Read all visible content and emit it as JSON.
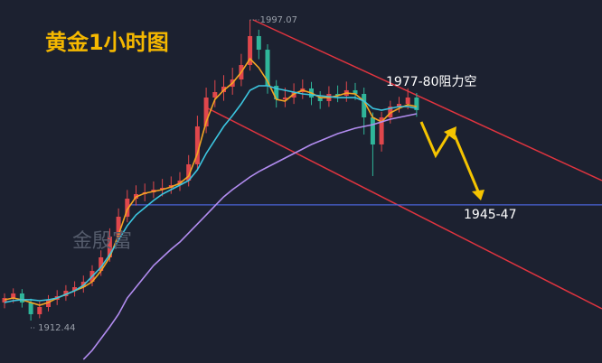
{
  "chart_data": {
    "type": "candlestick",
    "title": "黄金1小时图",
    "watermark": "金殷富",
    "annotation": "1977-80阻力空",
    "up_color": "#e0474c",
    "down_color": "#2fb59a",
    "open": [
      1917.52,
      1918.79,
      1920.07,
      1917.52,
      1914.22,
      1916.25,
      1918.29,
      1919.3,
      1920.83,
      1921.84,
      1923.37,
      1926.42,
      1930.23,
      1936.08,
      1941.67,
      1946.75,
      1948.02,
      1948.53,
      1949.29,
      1949.8,
      1950.56,
      1951.83,
      1956.41,
      1967.08,
      1975.21,
      1976.74,
      1978.26,
      1980.3,
      1984.36,
      1992.5,
      1988.68,
      1978.52,
      1974.71,
      1975.21,
      1976.74,
      1977.76,
      1975.21,
      1974.2,
      1976.23,
      1975.72,
      1977.25,
      1976.23,
      1969.62,
      1962.0,
      1969.62,
      1972.67,
      1973.43,
      1975.21
    ],
    "high": [
      1920.1,
      1921.5,
      1921.3,
      1918.6,
      1917.8,
      1919.6,
      1921.0,
      1922.4,
      1923.5,
      1925.1,
      1928.0,
      1932.2,
      1938.4,
      1944.0,
      1949.2,
      1950.5,
      1951.0,
      1951.6,
      1952.3,
      1953.0,
      1954.2,
      1959.0,
      1970.1,
      1978.0,
      1980.1,
      1981.5,
      1983.6,
      1987.5,
      1997.07,
      1994.3,
      1990.2,
      1980.1,
      1978.0,
      1979.2,
      1980.3,
      1979.6,
      1977.0,
      1978.4,
      1978.6,
      1979.7,
      1979.3,
      1978.0,
      1971.0,
      1971.2,
      1974.3,
      1975.4,
      1977.8,
      1976.5
    ],
    "low": [
      1915.9,
      1917.4,
      1916.1,
      1912.44,
      1913.1,
      1915.0,
      1916.8,
      1918.0,
      1919.2,
      1920.3,
      1922.1,
      1925.0,
      1929.0,
      1934.6,
      1940.1,
      1944.8,
      1946.0,
      1946.9,
      1947.4,
      1948.1,
      1948.9,
      1950.2,
      1955.0,
      1965.2,
      1972.5,
      1974.3,
      1976.0,
      1978.4,
      1982.8,
      1986.0,
      1976.3,
      1972.4,
      1972.5,
      1973.4,
      1974.8,
      1973.1,
      1972.0,
      1972.6,
      1973.9,
      1974.0,
      1974.5,
      1964.8,
      1953.11,
      1960.0,
      1967.9,
      1971.0,
      1971.9,
      1969.8
    ],
    "close": [
      1918.79,
      1920.07,
      1917.52,
      1914.22,
      1916.25,
      1918.29,
      1919.3,
      1920.83,
      1921.84,
      1923.37,
      1926.42,
      1930.23,
      1936.08,
      1941.67,
      1946.75,
      1948.02,
      1948.53,
      1949.29,
      1949.8,
      1950.56,
      1951.83,
      1956.41,
      1967.08,
      1975.21,
      1976.74,
      1978.26,
      1980.3,
      1984.36,
      1992.5,
      1988.68,
      1978.52,
      1974.71,
      1975.21,
      1976.74,
      1977.76,
      1975.21,
      1974.2,
      1976.23,
      1975.72,
      1977.25,
      1976.23,
      1969.62,
      1962.0,
      1969.62,
      1972.67,
      1973.43,
      1975.21,
      1971.66
    ],
    "lines": [
      {
        "color": "#f5a623",
        "values": [
          1918.29,
          1918.79,
          1918.29,
          1917.52,
          1916.76,
          1917.52,
          1918.79,
          1919.81,
          1920.83,
          1921.84,
          1923.37,
          1926.42,
          1930.23,
          1936.58,
          1943.7,
          1947.26,
          1948.27,
          1948.78,
          1949.29,
          1950.05,
          1951.07,
          1953.1,
          1959.46,
          1968.35,
          1974.7,
          1977.25,
          1979.28,
          1982.33,
          1986.14,
          1983.6,
          1979.79,
          1974.7,
          1974.2,
          1976.23,
          1977.25,
          1976.48,
          1975.21,
          1975.21,
          1975.72,
          1976.48,
          1976.23,
          1974.2,
          1969.62,
          1968.35,
          1970.89,
          1972.16,
          1973.18,
          1972.67
        ]
      },
      {
        "color": "#3cc6e0",
        "values": [
          1917.52,
          1918.03,
          1918.29,
          1918.29,
          1918.03,
          1918.29,
          1918.79,
          1919.81,
          1920.83,
          1922.35,
          1924.89,
          1927.43,
          1930.99,
          1935.06,
          1939.12,
          1942.17,
          1944.21,
          1946.24,
          1948.02,
          1949.29,
          1950.56,
          1951.83,
          1954.88,
          1959.46,
          1963.27,
          1967.08,
          1970.13,
          1973.43,
          1977.25,
          1978.52,
          1978.52,
          1977.75,
          1977.25,
          1976.74,
          1976.23,
          1975.98,
          1975.72,
          1975.47,
          1975.21,
          1975.21,
          1975.21,
          1974.2,
          1972.16,
          1971.65,
          1972.16,
          1972.67,
          1972.67,
          1972.16
        ]
      },
      {
        "color": "#b28cf0",
        "values": [
          null,
          null,
          null,
          null,
          null,
          null,
          null,
          null,
          null,
          1901.51,
          1904.05,
          1907.36,
          1910.66,
          1914.22,
          1918.79,
          1921.84,
          1924.89,
          1927.94,
          1930.23,
          1932.52,
          1934.55,
          1937.09,
          1939.63,
          1942.17,
          1944.72,
          1947.26,
          1949.29,
          1951.07,
          1952.85,
          1954.37,
          1955.64,
          1956.91,
          1958.19,
          1959.46,
          1960.73,
          1962.0,
          1963.01,
          1964.03,
          1965.05,
          1965.81,
          1966.57,
          1967.08,
          1967.59,
          1968.35,
          1969.11,
          1969.62,
          1970.13,
          1970.64
        ]
      }
    ],
    "support": {
      "value": 1945,
      "label": "1945-47"
    }
  }
}
